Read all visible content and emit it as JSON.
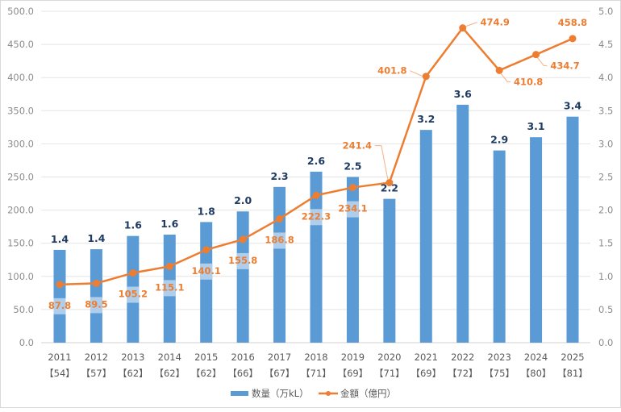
{
  "chart_data": {
    "type": "bar+line",
    "title": "",
    "categories": [
      "2011",
      "2012",
      "2013",
      "2014",
      "2015",
      "2016",
      "2017",
      "2018",
      "2019",
      "2020",
      "2021",
      "2022",
      "2023",
      "2024",
      "2025"
    ],
    "category_sublabels": [
      "【54】",
      "【57】",
      "【62】",
      "【62】",
      "【62】",
      "【66】",
      "【67】",
      "【71】",
      "【69】",
      "【71】",
      "【69】",
      "【72】",
      "【75】",
      "【80】",
      "【81】"
    ],
    "series": [
      {
        "name": "数量（万kL）",
        "type": "bar",
        "axis": "right",
        "color": "#5b9bd5",
        "values": [
          1.4,
          1.41,
          1.61,
          1.63,
          1.82,
          1.98,
          2.35,
          2.58,
          2.5,
          2.17,
          3.21,
          3.59,
          2.9,
          3.1,
          3.41
        ],
        "labels": [
          "1.4",
          "1.4",
          "1.6",
          "1.6",
          "1.8",
          "2.0",
          "2.3",
          "2.6",
          "2.5",
          "2.2",
          "3.2",
          "3.6",
          "2.9",
          "3.1",
          "3.4"
        ]
      },
      {
        "name": "金額（億円）",
        "type": "line",
        "axis": "left",
        "color": "#ed7d31",
        "values": [
          87.8,
          89.5,
          105.2,
          115.1,
          140.1,
          155.8,
          186.8,
          222.3,
          234.1,
          241.4,
          401.8,
          474.9,
          410.8,
          434.7,
          458.8
        ],
        "labels": [
          "87.8",
          "89.5",
          "105.2",
          "115.1",
          "140.1",
          "155.8",
          "186.8",
          "222.3",
          "234.1",
          "241.4",
          "401.8",
          "474.9",
          "410.8",
          "434.7",
          "458.8"
        ]
      }
    ],
    "left_axis": {
      "ylim": [
        0,
        500
      ],
      "ticks": [
        "0.0",
        "50.0",
        "100.0",
        "150.0",
        "200.0",
        "250.0",
        "300.0",
        "350.0",
        "400.0",
        "450.0",
        "500.0"
      ]
    },
    "right_axis": {
      "ylim": [
        0,
        5
      ],
      "ticks": [
        "0.0",
        "0.5",
        "1.0",
        "1.5",
        "2.0",
        "2.5",
        "3.0",
        "3.5",
        "4.0",
        "4.5",
        "5.0"
      ]
    },
    "grid": true,
    "legend": {
      "position": "bottom",
      "entries": [
        "数量（万kL）",
        "金額（億円）"
      ]
    },
    "xlabel": "",
    "ylabel": ""
  }
}
